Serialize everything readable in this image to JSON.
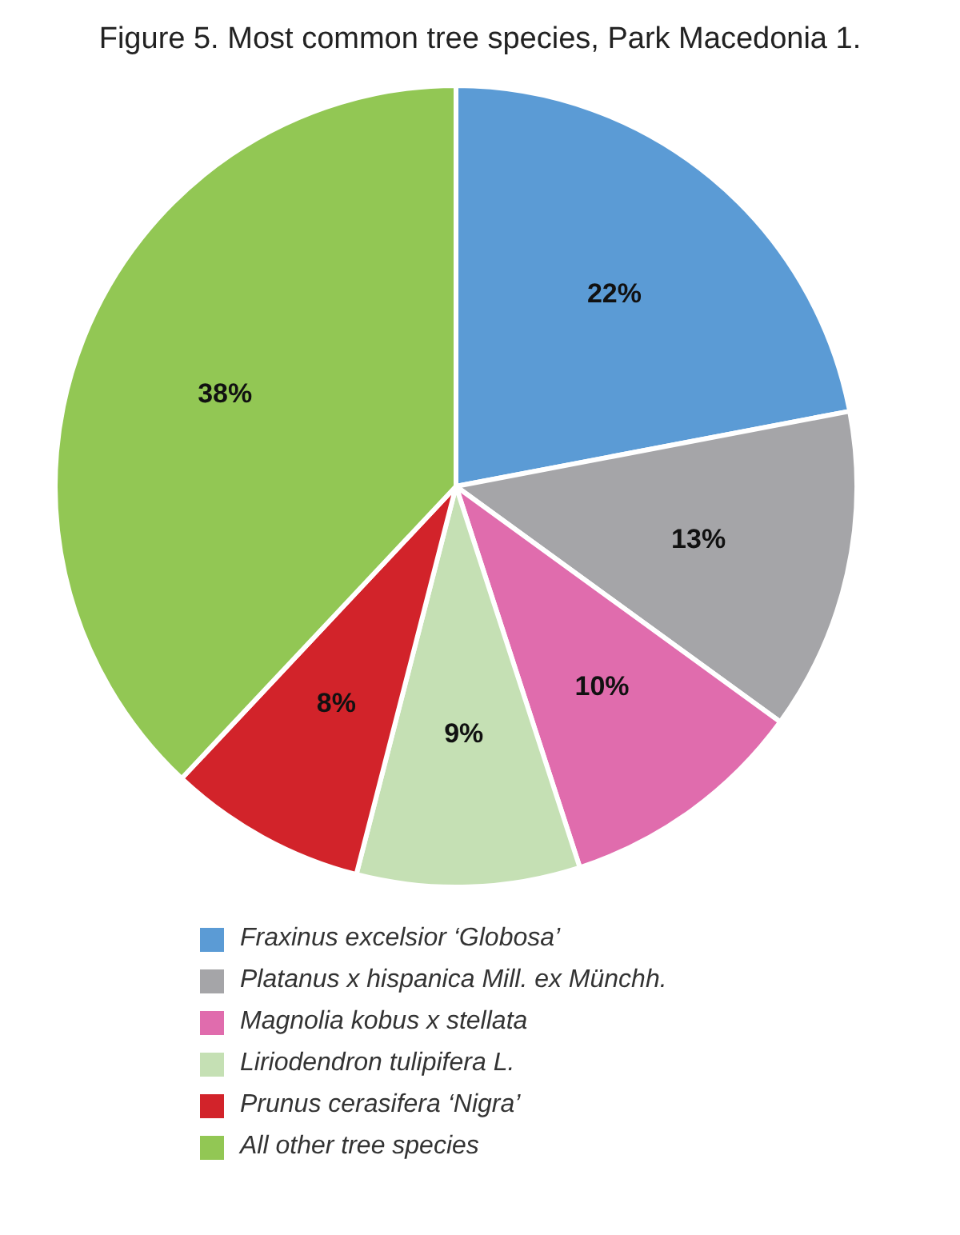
{
  "chart_data": {
    "type": "pie",
    "title": "Figure 5. Most common tree species, Park Macedonia 1.",
    "categories": [
      "Fraxinus excelsior ‘Globosa’",
      "Platanus x hispanica Mill. ex Münchh.",
      "Magnolia kobus x stellata",
      "Liriodendron tulipifera L.",
      "Prunus cerasifera ‘Nigra’",
      "All other tree species"
    ],
    "values": [
      22,
      13,
      10,
      9,
      8,
      38
    ],
    "colors": [
      "#5b9bd5",
      "#a5a5a8",
      "#e06cad",
      "#c5e0b4",
      "#d2232a",
      "#92c754"
    ],
    "value_labels": [
      "22%",
      "13%",
      "10%",
      "9%",
      "8%",
      "38%"
    ],
    "legend": "bottom"
  }
}
